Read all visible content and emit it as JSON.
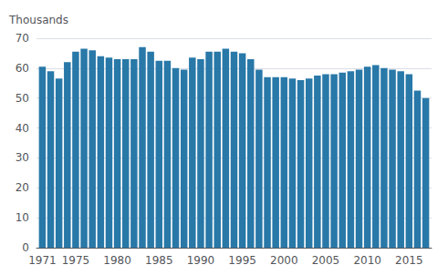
{
  "chart_data": {
    "type": "bar",
    "ylabel": "Thousands",
    "x": [
      1971,
      1972,
      1973,
      1974,
      1975,
      1976,
      1977,
      1978,
      1979,
      1980,
      1981,
      1982,
      1983,
      1984,
      1985,
      1986,
      1987,
      1988,
      1989,
      1990,
      1991,
      1992,
      1993,
      1994,
      1995,
      1996,
      1997,
      1998,
      1999,
      2000,
      2001,
      2002,
      2003,
      2004,
      2005,
      2006,
      2007,
      2008,
      2009,
      2010,
      2011,
      2012,
      2013,
      2014,
      2015,
      2016,
      2017
    ],
    "values": [
      60.5,
      59.0,
      56.5,
      62.0,
      65.5,
      66.5,
      66.0,
      64.0,
      63.5,
      63.0,
      63.0,
      63.0,
      67.0,
      65.5,
      62.5,
      62.5,
      60.0,
      59.5,
      63.5,
      63.0,
      65.5,
      65.5,
      66.5,
      65.5,
      65.0,
      63.0,
      59.5,
      57.0,
      57.0,
      57.0,
      56.5,
      56.0,
      56.5,
      57.5,
      58.0,
      58.0,
      58.5,
      59.0,
      59.5,
      60.5,
      61.0,
      60.0,
      59.5,
      59.0,
      58.0,
      52.5,
      50.0
    ],
    "color": "#2878a8",
    "xlim": [
      1970.3,
      2017.7
    ],
    "xticks": [
      1971,
      1975,
      1980,
      1985,
      1990,
      1995,
      2000,
      2005,
      2010,
      2015
    ],
    "ylim": [
      0,
      70
    ],
    "yticks": [
      0,
      10,
      20,
      30,
      40,
      50,
      60,
      70
    ],
    "grid": true
  }
}
